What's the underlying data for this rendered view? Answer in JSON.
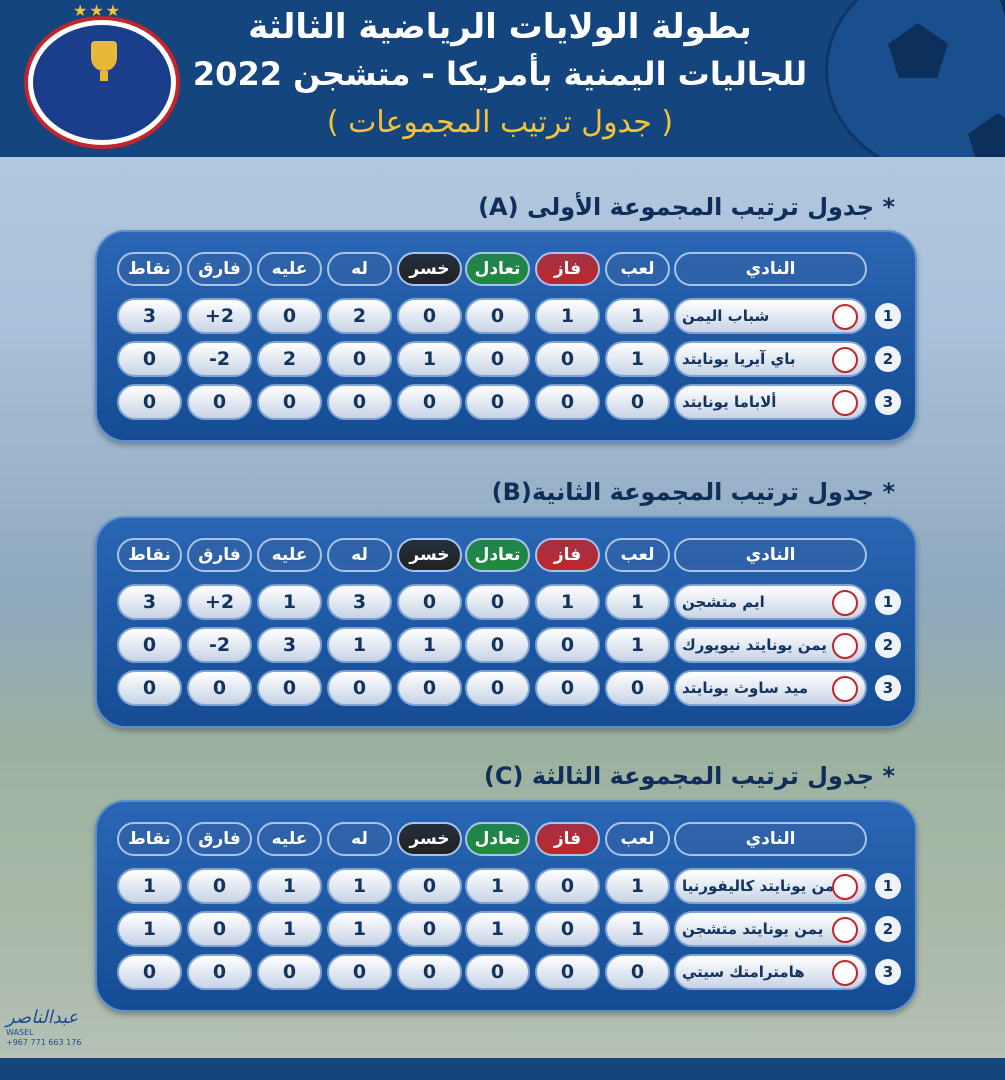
{
  "header": {
    "line1": "بطولة الولايات الرياضية الثالثة",
    "line2": "للجاليات اليمنية بأمريكا - متشجن 2022",
    "line3": "( جدول ترتيب المجموعات )"
  },
  "columns": [
    "النادي",
    "لعب",
    "فاز",
    "تعادل",
    "خسر",
    "له",
    "عليه",
    "فارق",
    "نقاط"
  ],
  "column_colors": [
    "#2f62a8",
    "#2f62a8",
    "#c0262b",
    "#1f8a3a",
    "#222222",
    "#2f62a8",
    "#2f62a8",
    "#2f62a8",
    "#2f62a8"
  ],
  "groups": [
    {
      "title": "* جدول ترتيب المجموعة الأولى (A)",
      "rows": [
        {
          "rank": "1",
          "club": "شباب اليمن",
          "values": [
            "1",
            "1",
            "0",
            "0",
            "2",
            "0",
            "+2",
            "3"
          ]
        },
        {
          "rank": "2",
          "club": "باي آيريا يونايتد",
          "values": [
            "1",
            "0",
            "0",
            "1",
            "0",
            "2",
            "-2",
            "0"
          ]
        },
        {
          "rank": "3",
          "club": "ألاباما يونايتد",
          "values": [
            "0",
            "0",
            "0",
            "0",
            "0",
            "0",
            "0",
            "0"
          ]
        }
      ]
    },
    {
      "title": "* جدول ترتيب المجموعة الثانية(B)",
      "rows": [
        {
          "rank": "1",
          "club": "ايم متشجن",
          "values": [
            "1",
            "1",
            "0",
            "0",
            "3",
            "1",
            "+2",
            "3"
          ]
        },
        {
          "rank": "2",
          "club": "يمن يونايتد نيويورك",
          "values": [
            "1",
            "0",
            "0",
            "1",
            "1",
            "3",
            "-2",
            "0"
          ]
        },
        {
          "rank": "3",
          "club": "ميد ساوث يونايتد",
          "values": [
            "0",
            "0",
            "0",
            "0",
            "0",
            "0",
            "0",
            "0"
          ]
        }
      ]
    },
    {
      "title": "* جدول ترتيب المجموعة الثالثة (C)",
      "rows": [
        {
          "rank": "1",
          "club": "يمن يونايتد كاليفورنيا",
          "values": [
            "1",
            "0",
            "1",
            "0",
            "1",
            "1",
            "0",
            "1"
          ]
        },
        {
          "rank": "2",
          "club": "يمن يونايتد متشجن",
          "values": [
            "1",
            "0",
            "1",
            "0",
            "1",
            "1",
            "0",
            "1"
          ]
        },
        {
          "rank": "3",
          "club": "هامترامتك سيتي",
          "values": [
            "0",
            "0",
            "0",
            "0",
            "0",
            "0",
            "0",
            "0"
          ]
        }
      ]
    }
  ],
  "signature": {
    "name": "عبدالناصر",
    "latin": "WASEL",
    "phone": "+967 771 663 176"
  }
}
